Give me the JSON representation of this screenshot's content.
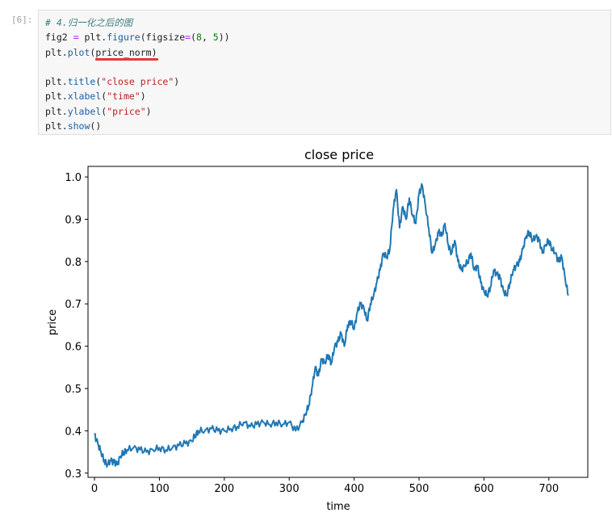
{
  "cell": {
    "prompt": "[6]:",
    "lines": [
      {
        "parts": [
          {
            "t": "# 4.归一化之后的图",
            "c": "cm"
          }
        ]
      },
      {
        "parts": [
          {
            "t": "fig2 "
          },
          {
            "t": "=",
            "c": "op"
          },
          {
            "t": " plt."
          },
          {
            "t": "figure",
            "c": "fn"
          },
          {
            "t": "(figsize"
          },
          {
            "t": "=",
            "c": "op"
          },
          {
            "t": "("
          },
          {
            "t": "8",
            "c": "num"
          },
          {
            "t": ", "
          },
          {
            "t": "5",
            "c": "num"
          },
          {
            "t": "))"
          }
        ]
      },
      {
        "parts": [
          {
            "t": "plt."
          },
          {
            "t": "plot",
            "c": "fn"
          },
          {
            "t": "(price_norm)"
          }
        ]
      },
      {
        "parts": [
          {
            "t": ""
          }
        ]
      },
      {
        "parts": [
          {
            "t": "plt."
          },
          {
            "t": "title",
            "c": "fn"
          },
          {
            "t": "("
          },
          {
            "t": "\"close price\"",
            "c": "str"
          },
          {
            "t": ")"
          }
        ]
      },
      {
        "parts": [
          {
            "t": "plt."
          },
          {
            "t": "xlabel",
            "c": "fn"
          },
          {
            "t": "("
          },
          {
            "t": "\"time\"",
            "c": "str"
          },
          {
            "t": ")"
          }
        ]
      },
      {
        "parts": [
          {
            "t": "plt."
          },
          {
            "t": "ylabel",
            "c": "fn"
          },
          {
            "t": "("
          },
          {
            "t": "\"price\"",
            "c": "str"
          },
          {
            "t": ")"
          }
        ]
      },
      {
        "parts": [
          {
            "t": "plt."
          },
          {
            "t": "show",
            "c": "fn"
          },
          {
            "t": "()"
          }
        ]
      }
    ]
  },
  "chart_data": {
    "type": "line",
    "title": "close price",
    "xlabel": "time",
    "ylabel": "price",
    "xlim": [
      -10,
      760
    ],
    "ylim": [
      0.29,
      1.025
    ],
    "xticks": [
      0,
      100,
      200,
      300,
      400,
      500,
      600,
      700
    ],
    "yticks": [
      0.3,
      0.4,
      0.5,
      0.6,
      0.7,
      0.8,
      0.9,
      1.0
    ],
    "ytick_labels": [
      "0.3",
      "0.4",
      "0.5",
      "0.6",
      "0.7",
      "0.8",
      "0.9",
      "1.0"
    ],
    "grid": false,
    "color": "#1f77b4",
    "series": [
      {
        "x": [
          0,
          5,
          10,
          15,
          20,
          25,
          30,
          35,
          40,
          45,
          50,
          60,
          70,
          80,
          90,
          100,
          110,
          120,
          130,
          140,
          150,
          155,
          160,
          170,
          180,
          190,
          200,
          210,
          220,
          230,
          240,
          250,
          260,
          270,
          280,
          290,
          300,
          310,
          320,
          325,
          330,
          335,
          340,
          345,
          350,
          355,
          360,
          365,
          370,
          375,
          380,
          385,
          390,
          395,
          400,
          405,
          410,
          415,
          420,
          425,
          430,
          435,
          440,
          445,
          450,
          455,
          460,
          465,
          470,
          475,
          480,
          485,
          490,
          495,
          500,
          505,
          510,
          515,
          520,
          525,
          530,
          535,
          540,
          545,
          550,
          555,
          560,
          565,
          570,
          575,
          580,
          585,
          590,
          595,
          600,
          605,
          610,
          615,
          620,
          625,
          630,
          635,
          640,
          645,
          650,
          655,
          660,
          665,
          670,
          675,
          680,
          685,
          690,
          695,
          700,
          705,
          710,
          715,
          720,
          725,
          730
        ],
        "y": [
          0.39,
          0.37,
          0.35,
          0.33,
          0.32,
          0.33,
          0.325,
          0.32,
          0.34,
          0.35,
          0.355,
          0.36,
          0.355,
          0.35,
          0.355,
          0.36,
          0.355,
          0.36,
          0.365,
          0.37,
          0.375,
          0.39,
          0.4,
          0.4,
          0.405,
          0.4,
          0.4,
          0.405,
          0.41,
          0.42,
          0.41,
          0.415,
          0.42,
          0.415,
          0.42,
          0.415,
          0.42,
          0.4,
          0.42,
          0.44,
          0.46,
          0.5,
          0.55,
          0.53,
          0.57,
          0.56,
          0.58,
          0.56,
          0.6,
          0.61,
          0.63,
          0.6,
          0.65,
          0.66,
          0.64,
          0.68,
          0.7,
          0.69,
          0.66,
          0.7,
          0.72,
          0.75,
          0.78,
          0.82,
          0.81,
          0.83,
          0.92,
          0.97,
          0.88,
          0.93,
          0.9,
          0.95,
          0.91,
          0.89,
          0.96,
          0.98,
          0.93,
          0.88,
          0.82,
          0.84,
          0.87,
          0.86,
          0.89,
          0.84,
          0.82,
          0.85,
          0.8,
          0.78,
          0.79,
          0.8,
          0.82,
          0.78,
          0.79,
          0.75,
          0.73,
          0.72,
          0.74,
          0.78,
          0.77,
          0.76,
          0.73,
          0.72,
          0.75,
          0.78,
          0.79,
          0.8,
          0.83,
          0.86,
          0.87,
          0.85,
          0.86,
          0.85,
          0.82,
          0.84,
          0.85,
          0.83,
          0.82,
          0.8,
          0.81,
          0.76,
          0.72
        ]
      }
    ]
  }
}
